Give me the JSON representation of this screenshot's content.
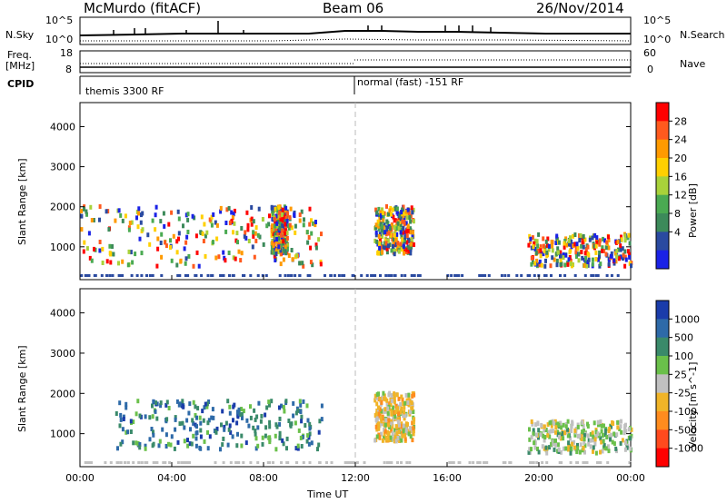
{
  "header": {
    "station": "McMurdo (fitACF)",
    "beam": "Beam 06",
    "date": "26/Nov/2014"
  },
  "top_panels": {
    "nsky_label": "N.Sky",
    "freq_label": "Freq.",
    "freq_unit": "[MHz]",
    "cpid_label": "CPID",
    "nsearch_label": "N.Search",
    "nave_label": "Nave",
    "sky_ticks_left": [
      "10^5",
      "10^0"
    ],
    "sky_ticks_right": [
      "10^5",
      "10^0"
    ],
    "freq_ticks": [
      "18",
      "8"
    ],
    "nave_ticks": [
      "60",
      "0"
    ],
    "cpid_modes": [
      "themis 3300 RF",
      "normal (fast) -151 RF"
    ]
  },
  "axes": {
    "ylabel": "Slant Range [km]",
    "xlabel": "Time UT",
    "xticks": [
      "00:00",
      "04:00",
      "08:00",
      "12:00",
      "16:00",
      "20:00",
      "00:00"
    ],
    "yticks": [
      "1000",
      "2000",
      "3000",
      "4000"
    ]
  },
  "power_scale": {
    "label": "Power [dB]",
    "ticks": [
      "28",
      "24",
      "20",
      "16",
      "12",
      "8",
      "4"
    ],
    "colors": [
      "#ff0000",
      "#ff5a1e",
      "#ff9a00",
      "#ffd000",
      "#a8d23a",
      "#4aaa52",
      "#3c8a5a",
      "#2a4aa0",
      "#1a22e6"
    ]
  },
  "velocity_scale": {
    "label": "Velocity [m s^-1]",
    "ticks": [
      "1000",
      "500",
      "100",
      "25",
      "-25",
      "-100",
      "-500",
      "-1000"
    ],
    "colors": [
      "#1a3caa",
      "#2e6aa8",
      "#3a8a6a",
      "#6ac04a",
      "#c0c0c0",
      "#f0b428",
      "#ff8c1e",
      "#ff4a1e",
      "#ff0000"
    ]
  },
  "chart_data": [
    {
      "type": "heatmap",
      "title": "Power [dB]",
      "xlabel": "Time UT",
      "ylabel": "Slant Range [km]",
      "xlim": [
        0,
        24
      ],
      "ylim": [
        180,
        4600
      ],
      "colorbar_range": [
        0,
        30
      ],
      "echo_regions": [
        {
          "t_start": 0.0,
          "t_end": 10.5,
          "range_min": 500,
          "range_max": 2000,
          "peak_db": 28
        },
        {
          "t_start": 8.3,
          "t_end": 9.0,
          "range_min": 800,
          "range_max": 2000,
          "peak_db": 28
        },
        {
          "t_start": 12.8,
          "t_end": 14.5,
          "range_min": 800,
          "range_max": 2000,
          "peak_db": 24
        },
        {
          "t_start": 19.5,
          "t_end": 24.0,
          "range_min": 500,
          "range_max": 1300,
          "peak_db": 28
        }
      ]
    },
    {
      "type": "heatmap",
      "title": "Velocity [m s^-1]",
      "xlabel": "Time UT",
      "ylabel": "Slant Range [km]",
      "xlim": [
        0,
        24
      ],
      "ylim": [
        180,
        4600
      ],
      "colorbar_range": [
        -1000,
        1000
      ],
      "echo_regions": [
        {
          "t_start": 1.5,
          "t_end": 10.5,
          "range_min": 600,
          "range_max": 1800,
          "velocity": 100
        },
        {
          "t_start": 12.8,
          "t_end": 14.5,
          "range_min": 800,
          "range_max": 2000,
          "velocity": -100
        },
        {
          "t_start": 19.5,
          "t_end": 24.0,
          "range_min": 500,
          "range_max": 1300,
          "velocity": 25
        }
      ]
    }
  ]
}
